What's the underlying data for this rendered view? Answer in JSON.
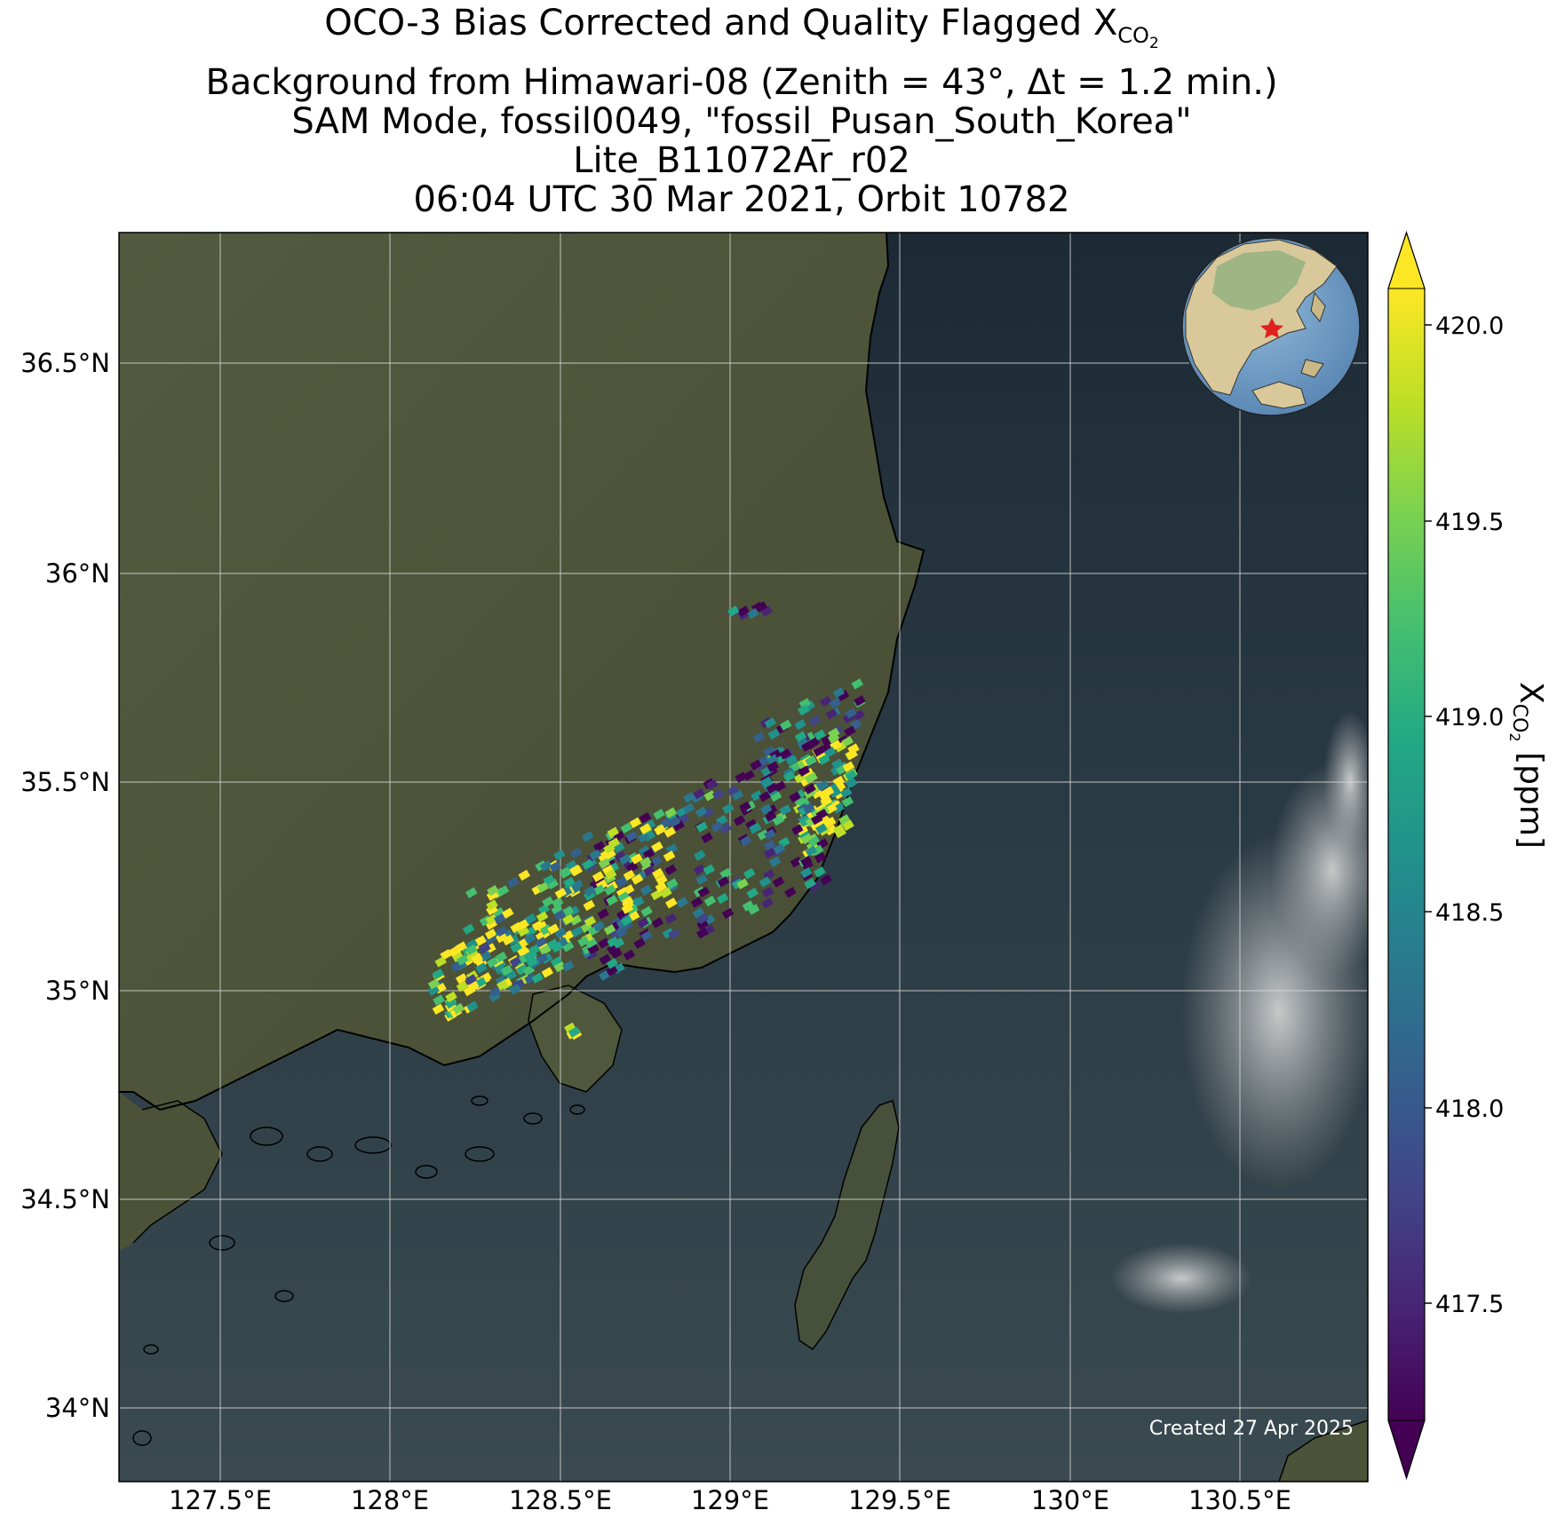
{
  "title": {
    "line1_prefix": "OCO-3 Bias Corrected and Quality Flagged X",
    "line1_sub": "CO",
    "line1_subsub": "2",
    "line2": "Background from Himawari-08 (Zenith = 43°, Δt =  1.2 min.)",
    "line3": "SAM Mode, fossil0049, \"fossil_Pusan_South_Korea\"",
    "line4": "Lite_B11072Ar_r02",
    "line5": "06:04 UTC 30 Mar 2021, Orbit 10782"
  },
  "map": {
    "lon_ticks": [
      "127.5°E",
      "128°E",
      "128.5°E",
      "129°E",
      "129.5°E",
      "130°E",
      "130.5°E"
    ],
    "lat_ticks": [
      "36.5°N",
      "36°N",
      "35.5°N",
      "35°N",
      "34.5°N",
      "34°N"
    ],
    "credit": "Created 27 Apr 2025"
  },
  "colorbar": {
    "label_prefix": "X",
    "label_sub": "CO",
    "label_subsub": "2",
    "label_suffix": " [ppm]",
    "ticks": [
      "420.0",
      "419.5",
      "419.0",
      "418.5",
      "418.0",
      "417.5"
    ],
    "colors": {
      "low": "#440154",
      "mid": "#21918c",
      "high": "#fde725"
    }
  },
  "chart_data": {
    "type": "heatmap",
    "colorbar_range": [
      417.2,
      420.1
    ],
    "colormap": "viridis",
    "lon_range": [
      127.2,
      130.85
    ],
    "lat_range": [
      33.8,
      36.8
    ],
    "clusters": [
      {
        "lon": 129.05,
        "lat": 35.9,
        "xco2_mean": 417.6
      },
      {
        "lon": 129.2,
        "lat": 35.6,
        "xco2_mean": 418.2
      },
      {
        "lon": 129.25,
        "lat": 35.45,
        "xco2_mean": 420.0
      },
      {
        "lon": 128.9,
        "lat": 35.3,
        "xco2_mean": 418.0
      },
      {
        "lon": 128.5,
        "lat": 35.2,
        "xco2_mean": 419.6
      },
      {
        "lon": 128.3,
        "lat": 35.05,
        "xco2_mean": 419.2
      },
      {
        "lon": 128.5,
        "lat": 34.88,
        "xco2_mean": 419.8
      }
    ]
  }
}
